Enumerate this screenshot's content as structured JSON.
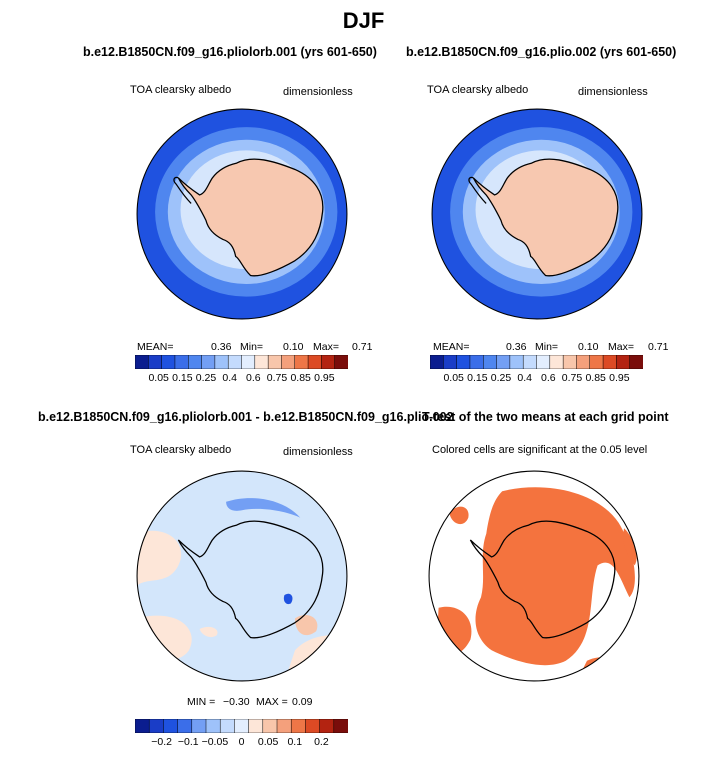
{
  "title": "DJF",
  "colors": {
    "ocean_deep": "#1f52e0",
    "ocean_mid": "#4f86ef",
    "ocean_light": "#9ec2fa",
    "ice_pale": "#d6e6fc",
    "land": "#f7c8b0",
    "diff_bg": "#d3e6fb",
    "sig": "#f4733e"
  },
  "panels": [
    {
      "title": "b.e12.B1850CN.f09_g16.pliolorb.001 (yrs 601-650)",
      "left_label": "TOA clearsky albedo",
      "right_label": "dimensionless",
      "stats": {
        "mean_label": "MEAN=",
        "mean": "0.36",
        "min_label": "Min=",
        "min": "0.10",
        "max_label": "Max=",
        "max": "0.71"
      }
    },
    {
      "title": "b.e12.B1850CN.f09_g16.plio.002 (yrs 601-650)",
      "left_label": "TOA clearsky albedo",
      "right_label": "dimensionless",
      "stats": {
        "mean_label": "MEAN=",
        "mean": "0.36",
        "min_label": "Min=",
        "min": "0.10",
        "max_label": "Max=",
        "max": "0.71"
      }
    },
    {
      "title": "b.e12.B1850CN.f09_g16.pliolorb.001 - b.e12.B1850CN.f09_g16.plio.002",
      "left_label": "TOA clearsky albedo",
      "right_label": "dimensionless",
      "stats": {
        "min_label": "MIN =",
        "min": "−0.30",
        "max_label": "MAX =",
        "max": "0.09"
      }
    },
    {
      "title": "T-test of the two means at each grid point",
      "left_label": "Colored cells are significant at the 0.05 level"
    }
  ],
  "chart_data": [
    {
      "type": "heatmap",
      "projection": "south-polar-stereographic",
      "variable": "TOA clearsky albedo",
      "units": "dimensionless",
      "mean": 0.36,
      "min": 0.1,
      "max": 0.71,
      "colorbar": {
        "tick_labels": [
          "0.05",
          "0.15",
          "0.25",
          "0.4",
          "0.6",
          "0.75",
          "0.85",
          "0.95"
        ],
        "colors": [
          "#0b1d8f",
          "#1a3dc7",
          "#1f52e0",
          "#3b6ee9",
          "#4f86ef",
          "#739ff4",
          "#9ec2fa",
          "#c4dbfd",
          "#e3eefe",
          "#fde6d8",
          "#f8c6ab",
          "#f4a07c",
          "#ee7647",
          "#dc4a24",
          "#b32311",
          "#7a0d0b"
        ]
      }
    },
    {
      "type": "heatmap",
      "projection": "south-polar-stereographic",
      "variable": "TOA clearsky albedo",
      "units": "dimensionless",
      "mean": 0.36,
      "min": 0.1,
      "max": 0.71,
      "colorbar": {
        "tick_labels": [
          "0.05",
          "0.15",
          "0.25",
          "0.4",
          "0.6",
          "0.75",
          "0.85",
          "0.95"
        ],
        "colors": [
          "#0b1d8f",
          "#1a3dc7",
          "#1f52e0",
          "#3b6ee9",
          "#4f86ef",
          "#739ff4",
          "#9ec2fa",
          "#c4dbfd",
          "#e3eefe",
          "#fde6d8",
          "#f8c6ab",
          "#f4a07c",
          "#ee7647",
          "#dc4a24",
          "#b32311",
          "#7a0d0b"
        ]
      }
    },
    {
      "type": "heatmap",
      "projection": "south-polar-stereographic",
      "variable": "TOA clearsky albedo",
      "units": "dimensionless",
      "min": -0.3,
      "max": 0.09,
      "colorbar": {
        "tick_labels": [
          "−0.2",
          "−0.1",
          "−0.05",
          "0",
          "0.05",
          "0.1",
          "0.2"
        ],
        "colors": [
          "#0b1d8f",
          "#1a3dc7",
          "#1f52e0",
          "#3b6ee9",
          "#739ff4",
          "#9ec2fa",
          "#c4dbfd",
          "#e3eefe",
          "#fde6d8",
          "#f8c6ab",
          "#f4a07c",
          "#ee7647",
          "#dc4a24",
          "#b32311",
          "#7a0d0b"
        ]
      }
    },
    {
      "type": "heatmap",
      "projection": "south-polar-stereographic",
      "significance_level": 0.05,
      "significant_color": "#f4733e"
    }
  ]
}
